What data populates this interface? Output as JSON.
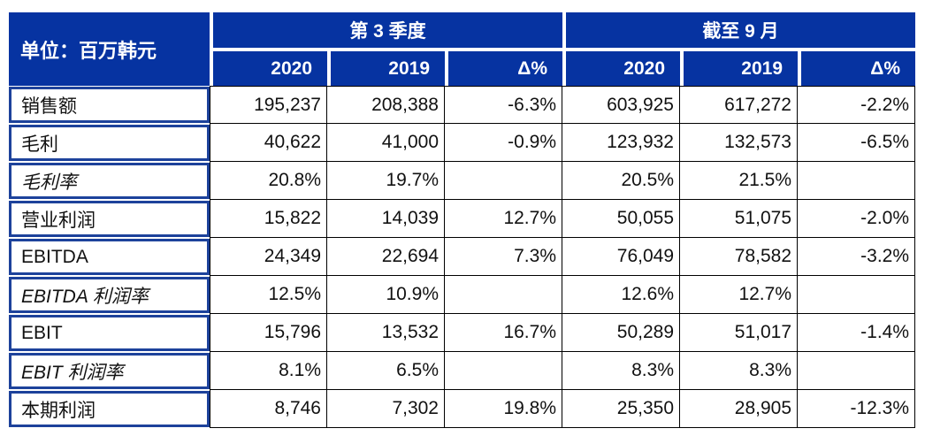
{
  "chart_data": {
    "type": "table",
    "unit_label": "单位：百万韩元",
    "column_groups": [
      "第 3 季度",
      "截至 9 月"
    ],
    "columns": [
      "2020",
      "2019",
      "Δ%",
      "2020",
      "2019",
      "Δ%"
    ],
    "rows": [
      {
        "label": "销售额",
        "italic": false,
        "values": [
          "195,237",
          "208,388",
          "-6.3%",
          "603,925",
          "617,272",
          "-2.2%"
        ]
      },
      {
        "label": "毛利",
        "italic": false,
        "values": [
          "40,622",
          "41,000",
          "-0.9%",
          "123,932",
          "132,573",
          "-6.5%"
        ]
      },
      {
        "label": "毛利率",
        "italic": true,
        "values": [
          "20.8%",
          "19.7%",
          "",
          "20.5%",
          "21.5%",
          ""
        ]
      },
      {
        "label": "营业利润",
        "italic": false,
        "values": [
          "15,822",
          "14,039",
          "12.7%",
          "50,055",
          "51,075",
          "-2.0%"
        ]
      },
      {
        "label": "EBITDA",
        "italic": false,
        "values": [
          "24,349",
          "22,694",
          "7.3%",
          "76,049",
          "78,582",
          "-3.2%"
        ]
      },
      {
        "label": "EBITDA 利润率",
        "italic": true,
        "values": [
          "12.5%",
          "10.9%",
          "",
          "12.6%",
          "12.7%",
          ""
        ]
      },
      {
        "label": "EBIT",
        "italic": false,
        "values": [
          "15,796",
          "13,532",
          "16.7%",
          "50,289",
          "51,017",
          "-1.4%"
        ]
      },
      {
        "label": "EBIT 利润率",
        "italic": true,
        "values": [
          "8.1%",
          "6.5%",
          "",
          "8.3%",
          "8.3%",
          ""
        ]
      },
      {
        "label": "本期利润",
        "italic": false,
        "values": [
          "8,746",
          "7,302",
          "19.8%",
          "25,350",
          "28,905",
          "-12.3%"
        ]
      }
    ],
    "colors": {
      "header_blue": "#0633A1",
      "label_border_blue": "#1D429B",
      "grid_line": "#000000",
      "header_text": "#FFFFFF",
      "body_text": "#111111"
    }
  }
}
